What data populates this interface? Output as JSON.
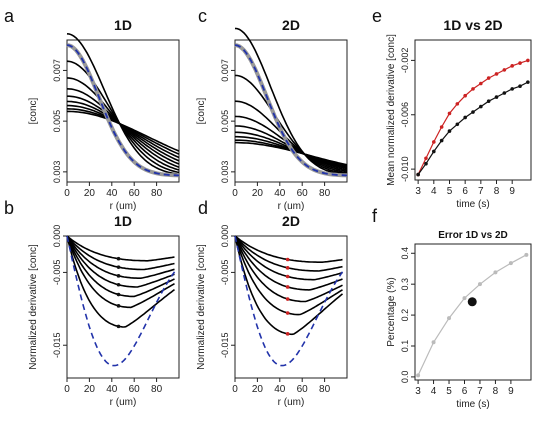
{
  "chart_data": [
    {
      "id": "a",
      "panel_label": "a",
      "type": "line",
      "title": "1D",
      "xlabel": "r (um)",
      "ylabel": "[conc]",
      "xlim": [
        0,
        100
      ],
      "ylim": [
        0.0026,
        0.0082
      ],
      "xticks": [
        0,
        20,
        40,
        60,
        80
      ],
      "yticks": [
        0.003,
        0.005,
        0.007
      ],
      "ytick_labels": [
        "0.003",
        "0.005",
        "0.007"
      ],
      "profile": {
        "kind": "gaussian_spread",
        "crossing_r": 47,
        "crossing_value": 0.0049,
        "rmax": 100,
        "widths": [
          8000,
          2200,
          2800,
          3500,
          4300,
          5200,
          6200,
          7400,
          8800,
          10400
        ],
        "initial_peak": 0.008,
        "initial_tail": 0.00285,
        "initial_width": 1600
      },
      "guide_color": "#999999",
      "initial_color": "#2233aa"
    },
    {
      "id": "b",
      "panel_label": "b",
      "type": "line",
      "title": "1D",
      "xlabel": "r (um)",
      "ylabel": "Normalized derivative [conc]",
      "xlim": [
        0,
        100
      ],
      "ylim": [
        -0.0195,
        0.0
      ],
      "xticks": [
        0,
        20,
        40,
        60,
        80
      ],
      "yticks": [
        0.0,
        -0.005,
        -0.015
      ],
      "ytick_labels": [
        "0.000",
        "-0.005",
        "-0.015"
      ],
      "minima": [
        -0.0034,
        -0.0046,
        -0.0058,
        -0.007,
        -0.0083,
        -0.0098,
        -0.0125
      ],
      "min_r": [
        72,
        69,
        66,
        63,
        60,
        57,
        52
      ],
      "initial_min": -0.0178,
      "initial_min_r": 42,
      "marker_r": 46,
      "marker_color": "#111111",
      "initial_color": "#2233aa"
    },
    {
      "id": "c",
      "panel_label": "c",
      "type": "line",
      "title": "2D",
      "xlabel": "r (um)",
      "ylabel": "[conc]",
      "xlim": [
        0,
        100
      ],
      "ylim": [
        0.0026,
        0.0082
      ],
      "xticks": [
        0,
        20,
        40,
        60,
        80
      ],
      "yticks": [
        0.003,
        0.005,
        0.007
      ],
      "ytick_labels": [
        "0.003",
        "0.005",
        "0.007"
      ],
      "profile": {
        "kind": "gaussian_spread",
        "crossing_r": 62,
        "crossing_value": 0.0037,
        "rmax": 100,
        "widths": [
          8000,
          2000,
          2500,
          3100,
          3800,
          4600,
          5500,
          6500,
          7700,
          9000
        ],
        "initial_peak": 0.008,
        "initial_tail": 0.00285,
        "initial_width": 1600
      },
      "guide_color": "#999999",
      "initial_color": "#2233aa"
    },
    {
      "id": "d",
      "panel_label": "d",
      "type": "line",
      "title": "2D",
      "xlabel": "r (um)",
      "ylabel": "Normalized derivative [conc]",
      "xlim": [
        0,
        100
      ],
      "ylim": [
        -0.0195,
        0.0
      ],
      "xticks": [
        0,
        20,
        40,
        60,
        80
      ],
      "yticks": [
        0.0,
        -0.005,
        -0.015
      ],
      "ytick_labels": [
        "0.000",
        "-0.005",
        "-0.015"
      ],
      "minima": [
        -0.0036,
        -0.0048,
        -0.006,
        -0.0074,
        -0.009,
        -0.0108,
        -0.0135
      ],
      "min_r": [
        78,
        75,
        71,
        67,
        63,
        58,
        52
      ],
      "initial_min": -0.0178,
      "initial_min_r": 42,
      "marker_r": 47,
      "marker_color": "#cc2222",
      "initial_color": "#2233aa"
    },
    {
      "id": "e",
      "panel_label": "e",
      "type": "line",
      "title": "1D vs 2D",
      "xlabel": "time (s)",
      "ylabel": "Mean normalized derivative [conc]",
      "xlim": [
        2.8,
        10.2
      ],
      "ylim": [
        -0.0108,
        -0.0005
      ],
      "xticks": [
        3,
        4,
        5,
        6,
        7,
        8,
        9
      ],
      "yticks": [
        -0.01,
        -0.006,
        -0.002
      ],
      "ytick_labels": [
        "-0.010",
        "-0.006",
        "-0.002"
      ],
      "x": [
        3,
        3.5,
        4,
        4.5,
        5,
        5.5,
        6,
        6.5,
        7,
        7.5,
        8,
        8.5,
        9,
        9.5,
        10
      ],
      "series": [
        {
          "color": "#cc2222",
          "values": [
            -0.0104,
            -0.0092,
            -0.008,
            -0.0069,
            -0.0059,
            -0.0052,
            -0.0046,
            -0.0041,
            -0.0037,
            -0.0033,
            -0.003,
            -0.0027,
            -0.0024,
            -0.0022,
            -0.002
          ]
        },
        {
          "color": "#111111",
          "values": [
            -0.0104,
            -0.0096,
            -0.0087,
            -0.0079,
            -0.0072,
            -0.0067,
            -0.0062,
            -0.0058,
            -0.0054,
            -0.005,
            -0.0047,
            -0.0044,
            -0.0041,
            -0.0039,
            -0.0036
          ]
        }
      ]
    },
    {
      "id": "f",
      "panel_label": "f",
      "type": "line",
      "title": "Error 1D vs 2D",
      "xlabel": "time (s)",
      "ylabel": "Percentage (%)",
      "xlim": [
        2.8,
        10.3
      ],
      "ylim": [
        -0.01,
        0.43
      ],
      "xticks": [
        3,
        4,
        5,
        6,
        7,
        8,
        9
      ],
      "yticks": [
        0.0,
        0.1,
        0.2,
        0.3,
        0.4
      ],
      "ytick_labels": [
        "0.0",
        "0.1",
        "0.2",
        "0.3",
        "0.4"
      ],
      "x": [
        3,
        4,
        5,
        6,
        7,
        8,
        9,
        10
      ],
      "values": [
        0.005,
        0.112,
        0.19,
        0.255,
        0.3,
        0.338,
        0.368,
        0.395
      ],
      "line_color": "#bbbbbb",
      "highlight": {
        "x": 6.5,
        "y": 0.243,
        "color": "#111111"
      }
    }
  ]
}
